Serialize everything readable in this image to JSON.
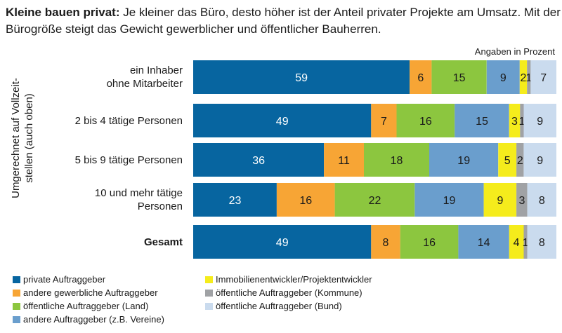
{
  "title_lead": "Kleine bauen privat:",
  "title_rest": " Je kleiner das Büro, desto höher ist der Anteil privater Projekte am Umsatz. Mit der Bürogröße steigt das Gewicht gewerblicher und öffentlicher Bauherren.",
  "chart_data": {
    "type": "bar",
    "orientation": "horizontal",
    "stacked": true,
    "unit_note": "Angaben in Prozent",
    "ylabel": "Umgerechnet auf Vollzeit-stellen (auch oben)",
    "categories": [
      "ein Inhaber ohne Mitarbeiter",
      "2 bis 4 tätige Personen",
      "5 bis 9 tätige Personen",
      "10 und mehr tätige Personen",
      "Gesamt"
    ],
    "category_lines": [
      [
        "ein Inhaber",
        "ohne Mitarbeiter"
      ],
      [
        "2 bis 4 tätige Personen"
      ],
      [
        "5 bis 9 tätige Personen"
      ],
      [
        "10 und mehr tätige",
        "Personen"
      ],
      [
        "Gesamt"
      ]
    ],
    "series": [
      {
        "name": "private Auftraggeber",
        "color": "#0765a0",
        "values": [
          59,
          49,
          36,
          23,
          49
        ]
      },
      {
        "name": "andere gewerbliche Auftraggeber",
        "color": "#f7a535",
        "values": [
          6,
          7,
          11,
          16,
          8
        ]
      },
      {
        "name": "öffentliche Auftraggeber (Land)",
        "color": "#8cc63f",
        "values": [
          15,
          16,
          18,
          22,
          16
        ]
      },
      {
        "name": "andere Auftraggeber (z.B. Vereine)",
        "color": "#6a9ecd",
        "values": [
          9,
          15,
          19,
          19,
          14
        ]
      },
      {
        "name": "Immobilienentwickler/Projektentwickler",
        "color": "#f5ec1c",
        "values": [
          2,
          3,
          5,
          9,
          4
        ]
      },
      {
        "name": "öffentliche Auftraggeber (Kommune)",
        "color": "#a0a2a5",
        "values": [
          1,
          1,
          2,
          3,
          1
        ]
      },
      {
        "name": "öffentliche Auftraggeber (Bund)",
        "color": "#cadbee",
        "values": [
          7,
          9,
          9,
          8,
          8
        ]
      }
    ],
    "legend_position": "bottom",
    "grid": false
  }
}
